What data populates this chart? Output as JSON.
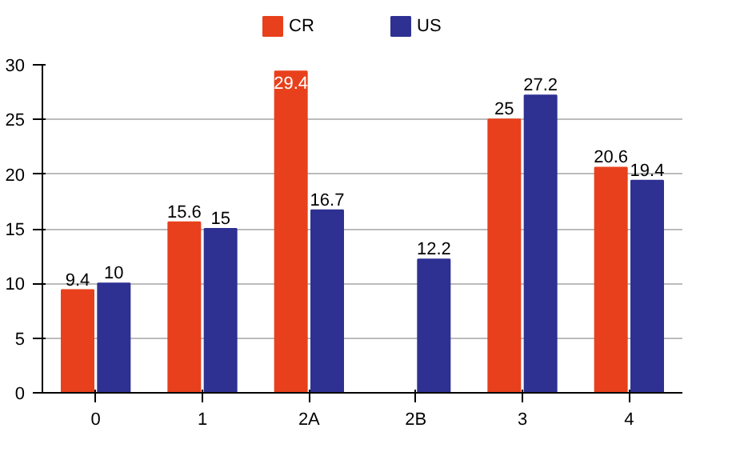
{
  "chart_data": {
    "type": "bar",
    "categories": [
      "0",
      "1",
      "2A",
      "2B",
      "3",
      "4"
    ],
    "series": [
      {
        "name": "CR",
        "color": "#e8401c",
        "values": [
          9.4,
          15.6,
          29.4,
          null,
          25,
          20.6
        ]
      },
      {
        "name": "US",
        "color": "#2e3192",
        "values": [
          10,
          15,
          16.7,
          12.2,
          27.2,
          19.4
        ]
      }
    ],
    "ylim": [
      0,
      30
    ],
    "yticks": [
      0,
      5,
      10,
      15,
      20,
      25,
      30
    ],
    "grid": "y",
    "legend": "top",
    "data_labels": true
  }
}
